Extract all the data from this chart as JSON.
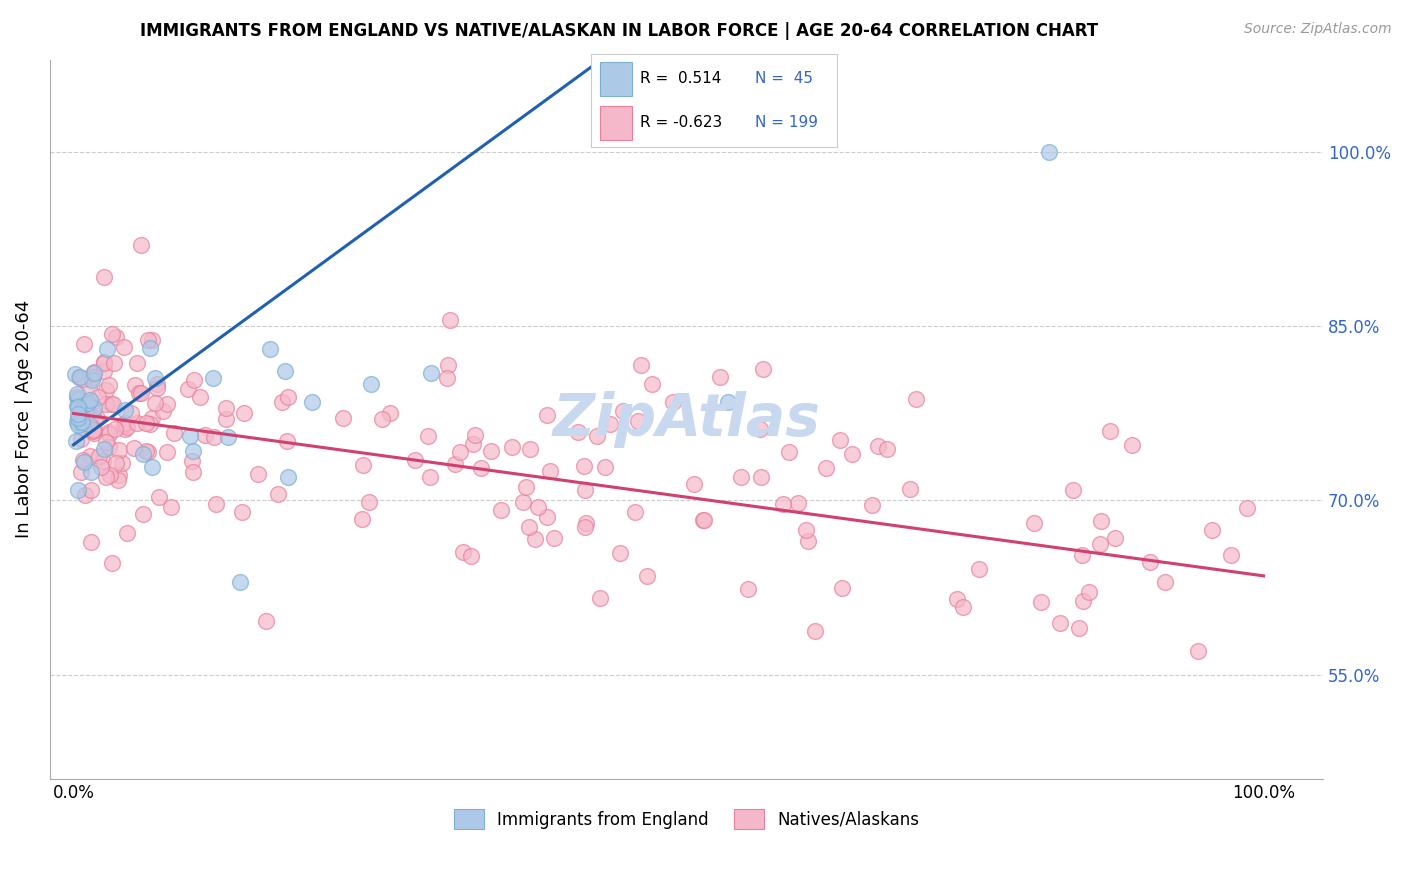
{
  "title": "IMMIGRANTS FROM ENGLAND VS NATIVE/ALASKAN IN LABOR FORCE | AGE 20-64 CORRELATION CHART",
  "source": "Source: ZipAtlas.com",
  "ylabel": "In Labor Force | Age 20-64",
  "blue_color": "#aec8e8",
  "blue_edge": "#7bafd4",
  "pink_color": "#f4b8ca",
  "pink_edge": "#e8809a",
  "blue_line_color": "#2060b0",
  "pink_line_color": "#d04070",
  "watermark_color": "#c8d8ee",
  "xlim": [
    -0.02,
    1.05
  ],
  "ylim": [
    0.46,
    1.08
  ],
  "y_ticks": [
    0.55,
    0.7,
    0.85,
    1.0
  ],
  "x_ticks": [
    0.0,
    1.0
  ],
  "figsize": [
    14.06,
    8.92
  ],
  "dpi": 100,
  "blue_line_x0": 0.0,
  "blue_line_y0": 0.748,
  "blue_line_x1": 0.35,
  "blue_line_y1": 1.01,
  "pink_line_x0": 0.0,
  "pink_line_y0": 0.775,
  "pink_line_x1": 1.0,
  "pink_line_y1": 0.635
}
